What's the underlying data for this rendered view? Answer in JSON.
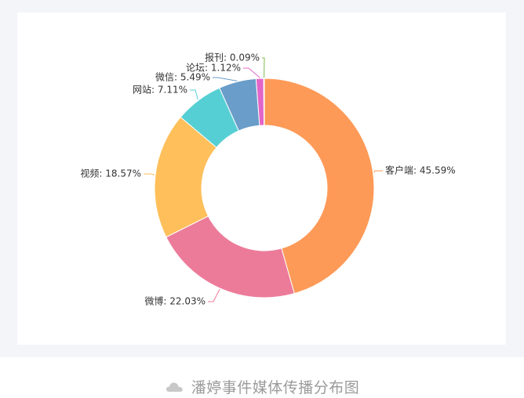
{
  "chart_data": {
    "type": "pie",
    "variant": "donut",
    "series": [
      {
        "name": "客户端",
        "value": 45.59,
        "label": "客户端: 45.59%",
        "color": "#fe9a57"
      },
      {
        "name": "微博",
        "value": 22.03,
        "label": "微博: 22.03%",
        "color": "#ec7b9a"
      },
      {
        "name": "视频",
        "value": 18.57,
        "label": "视频: 18.57%",
        "color": "#ffbf5a"
      },
      {
        "name": "网站",
        "value": 7.11,
        "label": "网站: 7.11%",
        "color": "#56cfd4"
      },
      {
        "name": "微信",
        "value": 5.49,
        "label": "微信: 5.49%",
        "color": "#6a9dc9"
      },
      {
        "name": "论坛",
        "value": 1.12,
        "label": "论坛: 1.12%",
        "color": "#e265c8"
      },
      {
        "name": "报刊",
        "value": 0.09,
        "label": "报刊: 0.09%",
        "color": "#7cba4a"
      }
    ]
  },
  "caption": {
    "icon": "cloud-icon",
    "text": "潘婷事件媒体传播分布图"
  }
}
